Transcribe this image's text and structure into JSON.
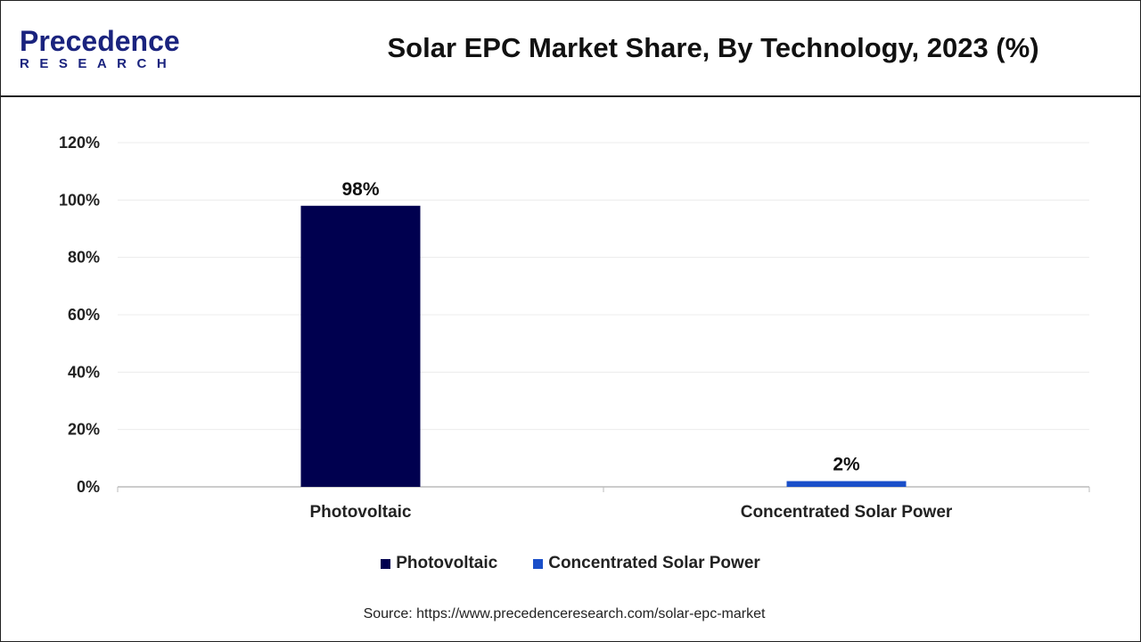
{
  "header": {
    "logo_text_main": "Precedence",
    "logo_text_sub": "RESEARCH",
    "title": "Solar EPC Market Share, By Technology, 2023 (%)"
  },
  "chart_data": {
    "type": "bar",
    "title": "Solar EPC Market Share, By Technology, 2023 (%)",
    "categories": [
      "Photovoltaic",
      "Concentrated Solar Power"
    ],
    "series": [
      {
        "name": "Photovoltaic",
        "values": [
          98,
          null
        ],
        "color": "#00004f"
      },
      {
        "name": "Concentrated Solar Power",
        "values": [
          null,
          2
        ],
        "color": "#1a4fc9"
      }
    ],
    "data_labels": [
      "98%",
      "2%"
    ],
    "yticks": [
      "0%",
      "20%",
      "40%",
      "60%",
      "80%",
      "100%",
      "120%"
    ],
    "ylim": [
      0,
      120
    ],
    "grid": true,
    "legend": "bottom"
  },
  "source": "Source: https://www.precedenceresearch.com/solar-epc-market"
}
